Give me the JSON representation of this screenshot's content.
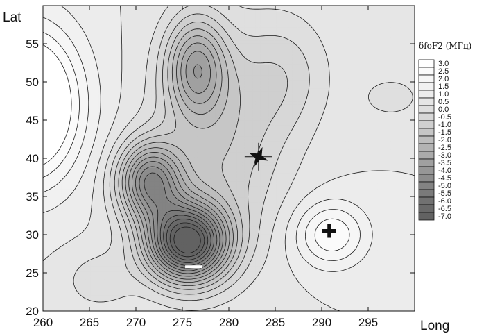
{
  "chart_data": {
    "type": "heatmap",
    "subtype": "filled-contour-map",
    "xlabel": "Long",
    "ylabel": "Lat",
    "xlim": [
      260,
      300
    ],
    "ylim": [
      20,
      60
    ],
    "xticks": [
      260,
      265,
      270,
      275,
      280,
      285,
      290,
      295
    ],
    "yticks": [
      20,
      25,
      30,
      35,
      40,
      45,
      50,
      55
    ],
    "xtick_labels": [
      "260",
      "265",
      "270",
      "275",
      "280",
      "285",
      "290",
      "295"
    ],
    "ytick_labels": [
      "20",
      "25",
      "30",
      "35",
      "40",
      "45",
      "50",
      "55"
    ],
    "legend": {
      "title": "δfoF2 (MΓц)",
      "placement": "right",
      "levels": [
        3.0,
        2.5,
        2.0,
        1.5,
        1.0,
        0.5,
        0.0,
        -0.5,
        -1.0,
        -1.5,
        -2.0,
        -2.5,
        -3.0,
        -3.5,
        -4.0,
        -4.5,
        -5.0,
        -5.5,
        -6.0,
        -6.5,
        -7.0
      ],
      "labels": [
        "3.0",
        "2.5",
        "2.0",
        "1.5",
        "1.0",
        "0.5",
        "0.0",
        "-0.5",
        "-1.0",
        "-1.5",
        "-2.0",
        "-2.5",
        "-3.0",
        "-3.5",
        "-4.0",
        "-4.5",
        "-5.0",
        "-5.5",
        "-6.0",
        "-6.5",
        "-7.0"
      ],
      "colors": [
        "#ffffff",
        "#fbfbfb",
        "#f6f6f6",
        "#f1f1f1",
        "#ececec",
        "#e6e6e6",
        "#dfdfdf",
        "#d7d7d7",
        "#cfcfcf",
        "#c6c6c6",
        "#bdbdbd",
        "#b3b3b3",
        "#aaaaaa",
        "#a0a0a0",
        "#969696",
        "#8c8c8c",
        "#838383",
        "#7a7a7a",
        "#717171",
        "#696969",
        "#626262"
      ]
    },
    "grid": false,
    "markers": [
      {
        "symbol": "star",
        "meaning": "epicenter",
        "long": 283.2,
        "lat": 40.2
      },
      {
        "symbol": "plus",
        "long": 290.8,
        "lat": 30.5
      },
      {
        "symbol": "minus",
        "long": 276.2,
        "lat": 25.8
      }
    ],
    "field_features": [
      {
        "kind": "minimum",
        "long": 275.5,
        "lat": 29,
        "value": -7.0
      },
      {
        "kind": "minimum",
        "long": 272,
        "lat": 36.5,
        "value": -5.2
      },
      {
        "kind": "minimum",
        "long": 276,
        "lat": 53,
        "value": -2.3
      },
      {
        "kind": "maximum",
        "long": 291,
        "lat": 30,
        "value": 1.6
      },
      {
        "kind": "maximum",
        "long": 259,
        "lat": 47,
        "value": 3.0
      },
      {
        "kind": "minimum",
        "long": 298,
        "lat": 48,
        "value": -1.4
      }
    ]
  }
}
